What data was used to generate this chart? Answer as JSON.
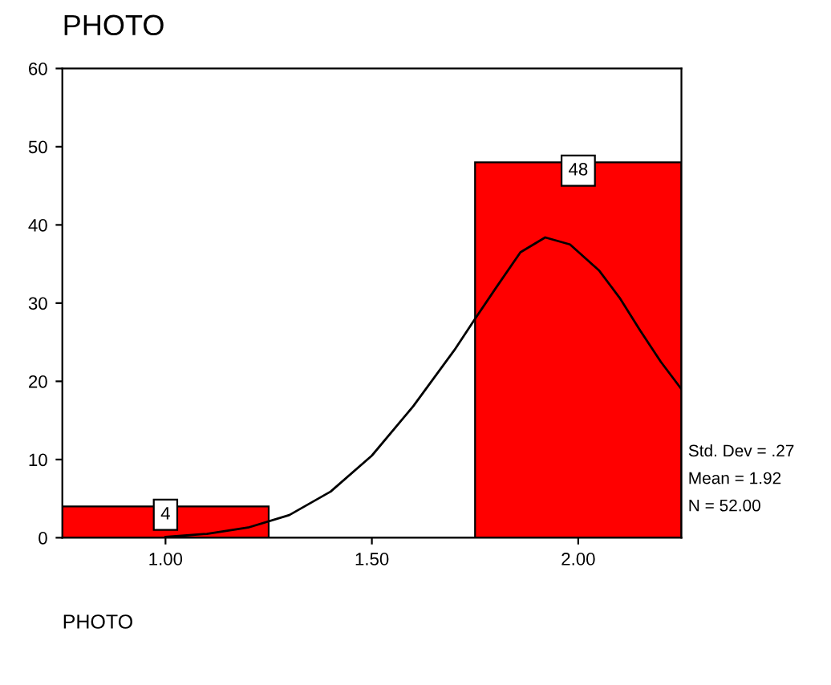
{
  "chart_data": {
    "type": "histogram",
    "title": "PHOTO",
    "xlabel": "PHOTO",
    "bins": [
      0.75,
      1.25,
      1.75,
      2.25
    ],
    "values": [
      4,
      0,
      48
    ],
    "color": "#ff0000",
    "value_labels": [
      "4",
      null,
      "48"
    ],
    "series": [
      {
        "type": "line",
        "color": "#000000",
        "x": [
          1.0,
          1.1,
          1.2,
          1.3,
          1.4,
          1.5,
          1.6,
          1.7,
          1.75,
          1.8,
          1.86,
          1.92,
          1.98,
          2.05,
          2.1,
          2.15,
          2.2,
          2.25
        ],
        "values": [
          0.1,
          0.5,
          1.3,
          2.9,
          5.9,
          10.5,
          16.8,
          24.0,
          28.0,
          31.9,
          36.5,
          38.4,
          37.5,
          34.2,
          30.7,
          26.5,
          22.5,
          19.0
        ]
      }
    ],
    "xlim": [
      0.75,
      2.25
    ],
    "ylim": [
      0,
      60
    ],
    "xticks": [
      {
        "value": 1.0,
        "label": "1.00"
      },
      {
        "value": 1.5,
        "label": "1.50"
      },
      {
        "value": 2.0,
        "label": "2.00"
      }
    ],
    "yticks": [
      0,
      10,
      20,
      30,
      40,
      50,
      60
    ],
    "grid": false,
    "annotations": [
      "Std. Dev = .27",
      "Mean = 1.92",
      "N = 52.00"
    ]
  }
}
